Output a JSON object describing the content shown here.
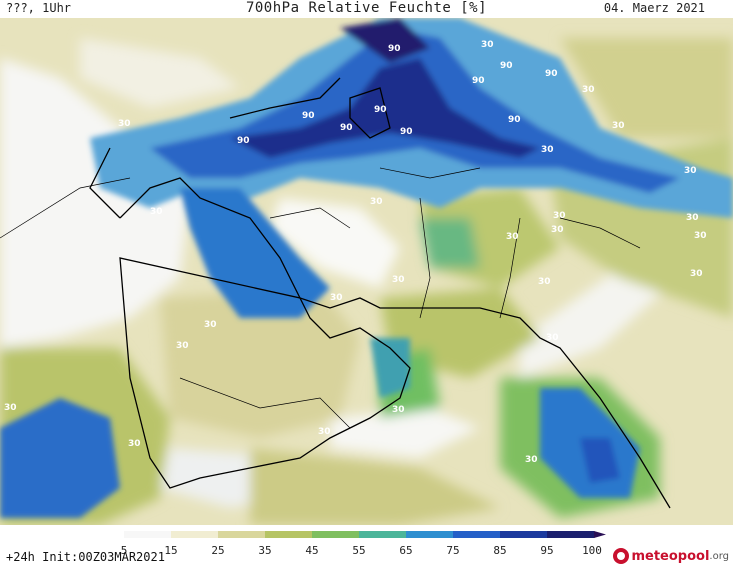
{
  "header": {
    "left": "???, 1Uhr",
    "title": "700hPa Relative Feuchte [%]",
    "date": "04. Maerz 2021"
  },
  "footer": {
    "init": "+24h Init:00Z03MAR2021",
    "brand_main": "meteopool",
    "brand_tld": ".org"
  },
  "legend": {
    "labels": [
      "5",
      "15",
      "25",
      "35",
      "45",
      "55",
      "65",
      "75",
      "85",
      "95",
      "100"
    ],
    "colors": [
      "#f7f7f7",
      "#f1edd2",
      "#d9d69c",
      "#b6c465",
      "#7fbf60",
      "#4cb59a",
      "#2f8fd0",
      "#2560c8",
      "#1c3a9e",
      "#1b1f6e",
      "#2a0f55"
    ]
  },
  "contour_labels": [
    "90",
    "90",
    "90",
    "90",
    "90",
    "90",
    "90",
    "90",
    "90",
    "90",
    "90",
    "30",
    "30",
    "30",
    "30",
    "30",
    "30",
    "30",
    "30",
    "30",
    "30",
    "30",
    "30",
    "30",
    "30",
    "30",
    "30",
    "30",
    "30",
    "30",
    "30",
    "30",
    "30",
    "30",
    "30",
    "30"
  ]
}
